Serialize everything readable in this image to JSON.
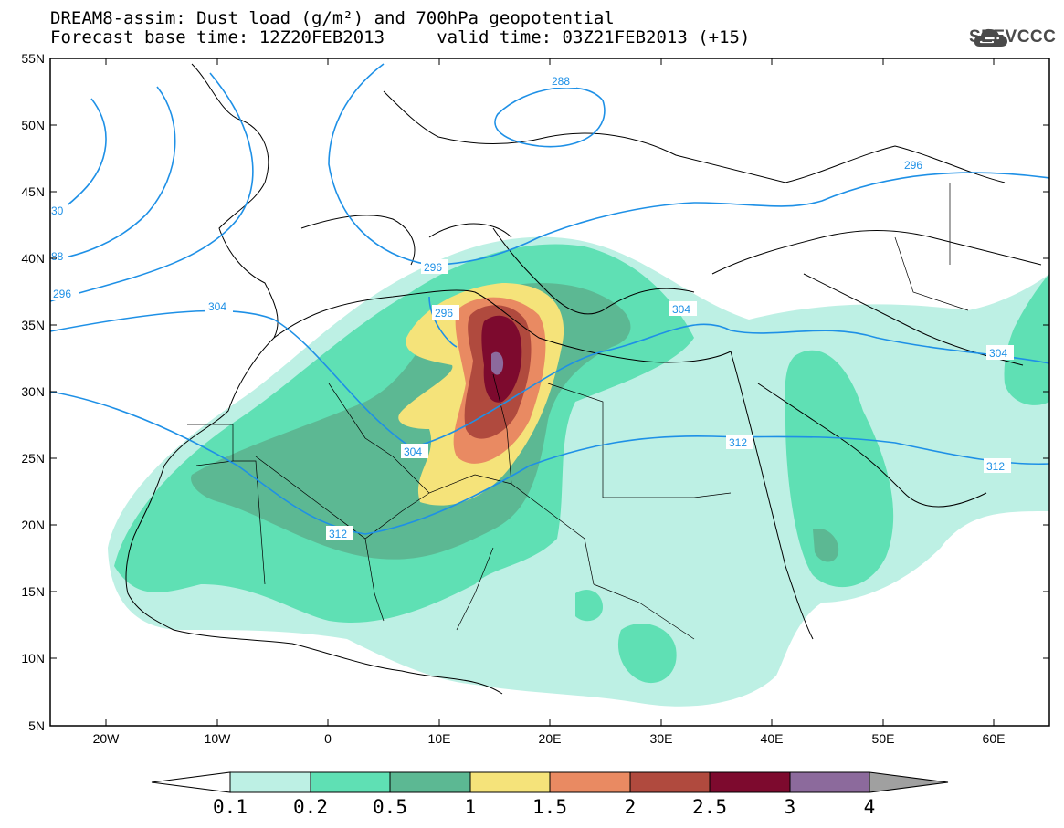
{
  "header": {
    "title_line1": "DREAM8-assim: Dust load (g/m²) and 700hPa geopotential",
    "title_line2": "Forecast base time: 12Z20FEB2013     valid time: 03Z21FEB2013 (+15)"
  },
  "logo": {
    "text": "SEEVCCC",
    "icon": "cloud-icon"
  },
  "map": {
    "lat_labels": [
      "55N",
      "50N",
      "45N",
      "40N",
      "35N",
      "30N",
      "25N",
      "20N",
      "15N",
      "10N",
      "5N"
    ],
    "lon_labels": [
      "20W",
      "10W",
      "0",
      "10E",
      "20E",
      "30E",
      "40E",
      "50E",
      "60E"
    ],
    "contour_labels": [
      "288",
      "296",
      "296",
      "296",
      "296",
      "304",
      "304",
      "304",
      "304",
      "312",
      "312",
      "312",
      "30",
      "88"
    ],
    "contour_color": "#1e90e6"
  },
  "legend": {
    "ticks": [
      "0.1",
      "0.2",
      "0.5",
      "1",
      "1.5",
      "2",
      "2.5",
      "3",
      "4"
    ],
    "colors": [
      "#ffffff",
      "#bdf0e4",
      "#5fe0b4",
      "#5cb893",
      "#f5e37a",
      "#e98a62",
      "#b04a3e",
      "#7d0a2e",
      "#8c6a9c",
      "#a0a0a0"
    ]
  }
}
